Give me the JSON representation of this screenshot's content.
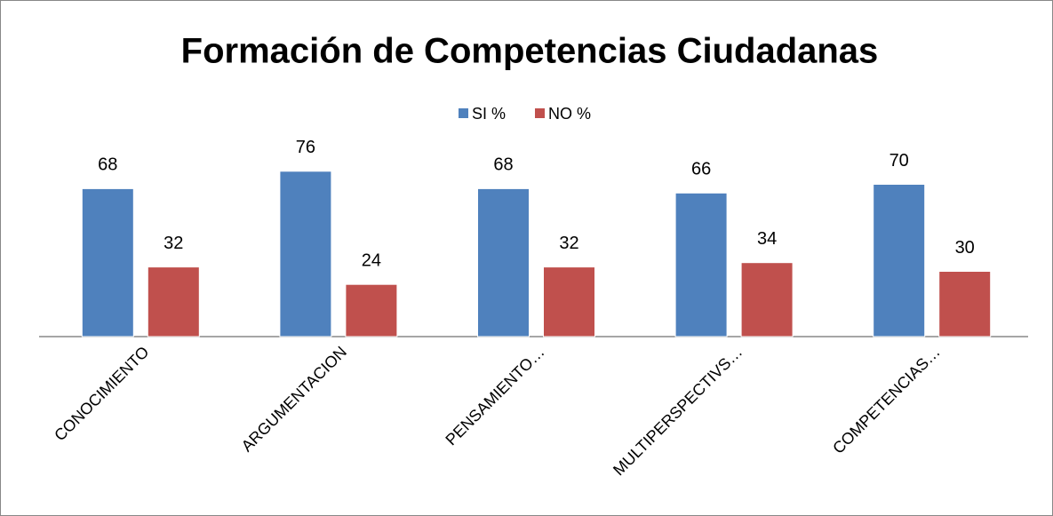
{
  "chart_data": {
    "type": "bar",
    "title": "Formación de Competencias Ciudadanas",
    "categories": [
      "CONOCIMIENTO",
      "ARGUMENTACION",
      "PENSAMIENTO…",
      "MULTIPERSPECTIVS…",
      "COMPETENCIAS…"
    ],
    "series": [
      {
        "name": "SI %",
        "color": "#4f81bd",
        "values": [
          68,
          76,
          68,
          66,
          70
        ]
      },
      {
        "name": "NO %",
        "color": "#c0504d",
        "values": [
          32,
          24,
          32,
          34,
          30
        ]
      }
    ],
    "ylim": [
      0,
      80
    ],
    "legend": "top"
  }
}
